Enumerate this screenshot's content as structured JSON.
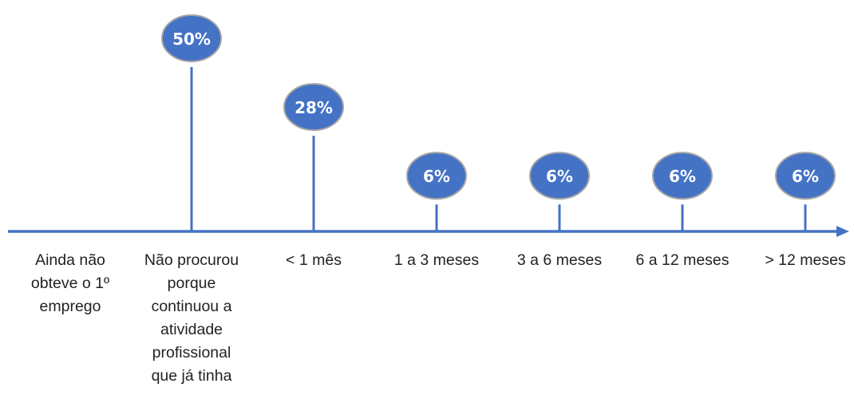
{
  "chart_data": {
    "type": "lollipop",
    "categories": [
      "Ainda não\nobteve o 1º\nemprego",
      "Não procurou\nporque\ncontinuou a\natividade\nprofissional\nque já tinha",
      "< 1  mês",
      "1  a  3 meses",
      "3  a  6 meses",
      "6  a 12 meses",
      "> 12 meses"
    ],
    "values": [
      0,
      50,
      28,
      6,
      6,
      6,
      6
    ],
    "value_labels": [
      "",
      "50%",
      "28%",
      "6%",
      "6%",
      "6%",
      "6%"
    ],
    "unit": "%",
    "ylim": [
      0,
      50
    ],
    "grid": false,
    "legend": "none"
  },
  "colors": {
    "line": "#4472C4",
    "bubble_fill": "#4472C4",
    "bubble_stroke": "#A5A5A5",
    "label_text": "#ffffff",
    "category_text": "#222222"
  }
}
